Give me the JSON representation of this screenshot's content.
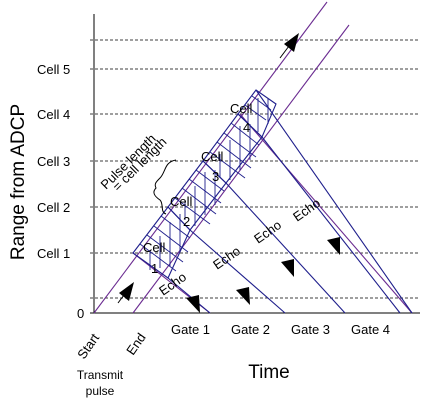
{
  "axes": {
    "y_title": "Range from ADCP",
    "x_title": "Time",
    "y_zero": "0"
  },
  "cells_y": [
    "Cell 1",
    "Cell 2",
    "Cell 3",
    "Cell 4",
    "Cell 5"
  ],
  "cells_in_beam": [
    {
      "top": "Cell",
      "bottom": "1"
    },
    {
      "top": "Cell",
      "bottom": "2"
    },
    {
      "top": "Cell",
      "bottom": "3"
    },
    {
      "top": "Cell",
      "bottom": "4"
    }
  ],
  "x_labels": {
    "start": "Start",
    "end": "End",
    "gates": [
      "Gate 1",
      "Gate 2",
      "Gate 3",
      "Gate 4"
    ]
  },
  "echo_label": "Echo",
  "pulse_note": {
    "line1": "Pulse length",
    "line2": "= cell length"
  },
  "transmit": {
    "line1": "Transmit",
    "line2": "pulse"
  },
  "colors": {
    "beam_outer": "#6b2c91",
    "beam_inner": "#1f1f8c",
    "grid": "#000000"
  }
}
